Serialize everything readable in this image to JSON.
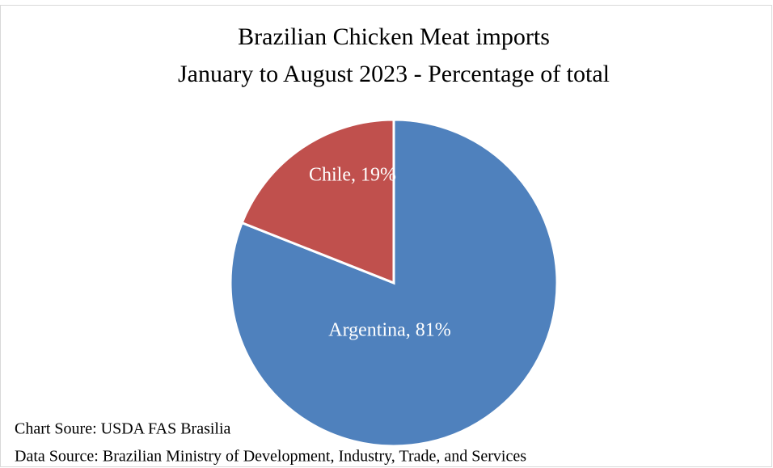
{
  "chart_data": {
    "type": "pie",
    "title": "Brazilian Chicken Meat imports",
    "subtitle": "January to August 2023 - Percentage of total",
    "categories": [
      "Argentina",
      "Chile"
    ],
    "values": [
      81,
      19
    ],
    "value_labels": [
      "Argentina, 81%",
      "Chile, 19%"
    ],
    "colors": [
      "#4f81bd",
      "#c0504d"
    ],
    "notes": [
      "Chart Soure: USDA FAS Brasilia",
      "Data Source: Brazilian Ministry of Development, Industry, Trade, and Services"
    ]
  }
}
